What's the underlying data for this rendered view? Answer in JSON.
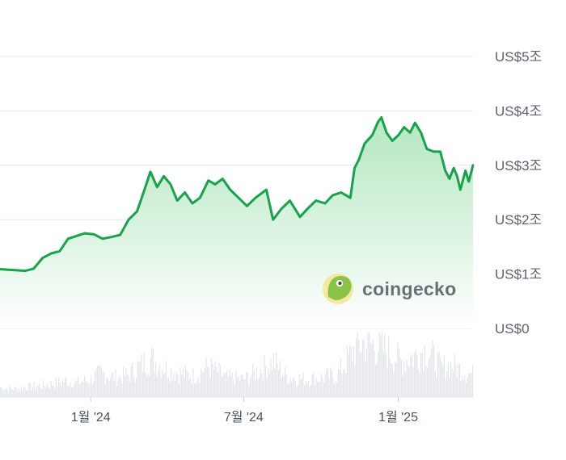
{
  "watermark": {
    "text": "coingecko"
  },
  "colors": {
    "line": "#16a34a",
    "area_top": "#a7e3b6",
    "area_bottom": "#ffffff",
    "grid": "#e5e7eb",
    "volume": "#e3e6ea",
    "logo_bg": "#f5e9a0",
    "logo_fg": "#8bc34a"
  },
  "chart_data": {
    "type": "area",
    "title": "",
    "xlabel": "",
    "ylabel": "",
    "ylim": [
      0,
      5
    ],
    "y_unit": "trillion USD",
    "y_ticks": [
      {
        "value": 0,
        "label": "US$0"
      },
      {
        "value": 1,
        "label": "US$1조"
      },
      {
        "value": 2,
        "label": "US$2조"
      },
      {
        "value": 3,
        "label": "US$3조"
      },
      {
        "value": 4,
        "label": "US$4조"
      },
      {
        "value": 5,
        "label": "US$5조"
      }
    ],
    "x_ticks": [
      {
        "date": "2024-01-01",
        "label": "1월 '24"
      },
      {
        "date": "2024-07-01",
        "label": "7월 '24"
      },
      {
        "date": "2025-01-01",
        "label": "1월 '25"
      }
    ],
    "xlim": [
      "2023-09-15",
      "2025-03-15"
    ],
    "grid": true,
    "series": [
      {
        "values": [
          [
            "2023-09-15",
            1.09
          ],
          [
            "2023-09-25",
            1.08
          ],
          [
            "2023-10-05",
            1.07
          ],
          [
            "2023-10-15",
            1.06
          ],
          [
            "2023-10-25",
            1.1
          ],
          [
            "2023-11-05",
            1.3
          ],
          [
            "2023-11-15",
            1.38
          ],
          [
            "2023-11-25",
            1.42
          ],
          [
            "2023-12-05",
            1.65
          ],
          [
            "2023-12-15",
            1.7
          ],
          [
            "2023-12-25",
            1.75
          ],
          [
            "2024-01-05",
            1.73
          ],
          [
            "2024-01-15",
            1.65
          ],
          [
            "2024-01-25",
            1.68
          ],
          [
            "2024-02-05",
            1.72
          ],
          [
            "2024-02-15",
            2.0
          ],
          [
            "2024-02-25",
            2.15
          ],
          [
            "2024-03-05",
            2.55
          ],
          [
            "2024-03-12",
            2.88
          ],
          [
            "2024-03-20",
            2.6
          ],
          [
            "2024-03-28",
            2.8
          ],
          [
            "2024-04-05",
            2.65
          ],
          [
            "2024-04-13",
            2.35
          ],
          [
            "2024-04-22",
            2.5
          ],
          [
            "2024-05-01",
            2.3
          ],
          [
            "2024-05-10",
            2.4
          ],
          [
            "2024-05-20",
            2.72
          ],
          [
            "2024-05-28",
            2.65
          ],
          [
            "2024-06-06",
            2.75
          ],
          [
            "2024-06-15",
            2.55
          ],
          [
            "2024-06-25",
            2.4
          ],
          [
            "2024-07-05",
            2.25
          ],
          [
            "2024-07-15",
            2.4
          ],
          [
            "2024-07-28",
            2.55
          ],
          [
            "2024-08-05",
            2.0
          ],
          [
            "2024-08-15",
            2.2
          ],
          [
            "2024-08-25",
            2.35
          ],
          [
            "2024-09-06",
            2.05
          ],
          [
            "2024-09-15",
            2.2
          ],
          [
            "2024-09-25",
            2.35
          ],
          [
            "2024-10-06",
            2.3
          ],
          [
            "2024-10-15",
            2.45
          ],
          [
            "2024-10-25",
            2.5
          ],
          [
            "2024-11-05",
            2.4
          ],
          [
            "2024-11-10",
            2.95
          ],
          [
            "2024-11-15",
            3.1
          ],
          [
            "2024-11-22",
            3.4
          ],
          [
            "2024-12-01",
            3.55
          ],
          [
            "2024-12-08",
            3.8
          ],
          [
            "2024-12-12",
            3.88
          ],
          [
            "2024-12-18",
            3.6
          ],
          [
            "2024-12-25",
            3.45
          ],
          [
            "2025-01-01",
            3.55
          ],
          [
            "2025-01-08",
            3.7
          ],
          [
            "2025-01-15",
            3.6
          ],
          [
            "2025-01-21",
            3.78
          ],
          [
            "2025-01-28",
            3.6
          ],
          [
            "2025-02-04",
            3.3
          ],
          [
            "2025-02-12",
            3.25
          ],
          [
            "2025-02-20",
            3.25
          ],
          [
            "2025-02-26",
            2.9
          ],
          [
            "2025-03-03",
            2.75
          ],
          [
            "2025-03-08",
            2.95
          ],
          [
            "2025-03-12",
            2.8
          ],
          [
            "2025-03-16",
            2.55
          ],
          [
            "2025-03-22",
            2.9
          ],
          [
            "2025-03-26",
            2.7
          ],
          [
            "2025-03-31",
            3.0
          ]
        ]
      }
    ],
    "volume": {
      "values": [
        [
          "2023-09-15",
          0.06
        ],
        [
          "2023-10-01",
          0.05
        ],
        [
          "2023-10-15",
          0.06
        ],
        [
          "2023-11-01",
          0.07
        ],
        [
          "2023-11-15",
          0.08
        ],
        [
          "2023-12-01",
          0.1
        ],
        [
          "2023-12-15",
          0.09
        ],
        [
          "2024-01-01",
          0.11
        ],
        [
          "2024-01-12",
          0.15
        ],
        [
          "2024-02-01",
          0.12
        ],
        [
          "2024-02-15",
          0.14
        ],
        [
          "2024-03-01",
          0.2
        ],
        [
          "2024-03-12",
          0.24
        ],
        [
          "2024-04-01",
          0.17
        ],
        [
          "2024-04-15",
          0.15
        ],
        [
          "2024-05-01",
          0.13
        ],
        [
          "2024-05-20",
          0.19
        ],
        [
          "2024-06-10",
          0.12
        ],
        [
          "2024-07-01",
          0.11
        ],
        [
          "2024-08-05",
          0.22
        ],
        [
          "2024-08-20",
          0.13
        ],
        [
          "2024-09-10",
          0.11
        ],
        [
          "2024-10-01",
          0.12
        ],
        [
          "2024-10-20",
          0.14
        ],
        [
          "2024-11-10",
          0.3
        ],
        [
          "2024-11-20",
          0.34
        ],
        [
          "2024-12-05",
          0.32
        ],
        [
          "2024-12-20",
          0.28
        ],
        [
          "2025-01-05",
          0.22
        ],
        [
          "2025-01-21",
          0.26
        ],
        [
          "2025-02-03",
          0.3
        ],
        [
          "2025-02-20",
          0.18
        ],
        [
          "2025-03-05",
          0.2
        ],
        [
          "2025-03-20",
          0.16
        ],
        [
          "2025-03-31",
          0.14
        ]
      ]
    }
  }
}
